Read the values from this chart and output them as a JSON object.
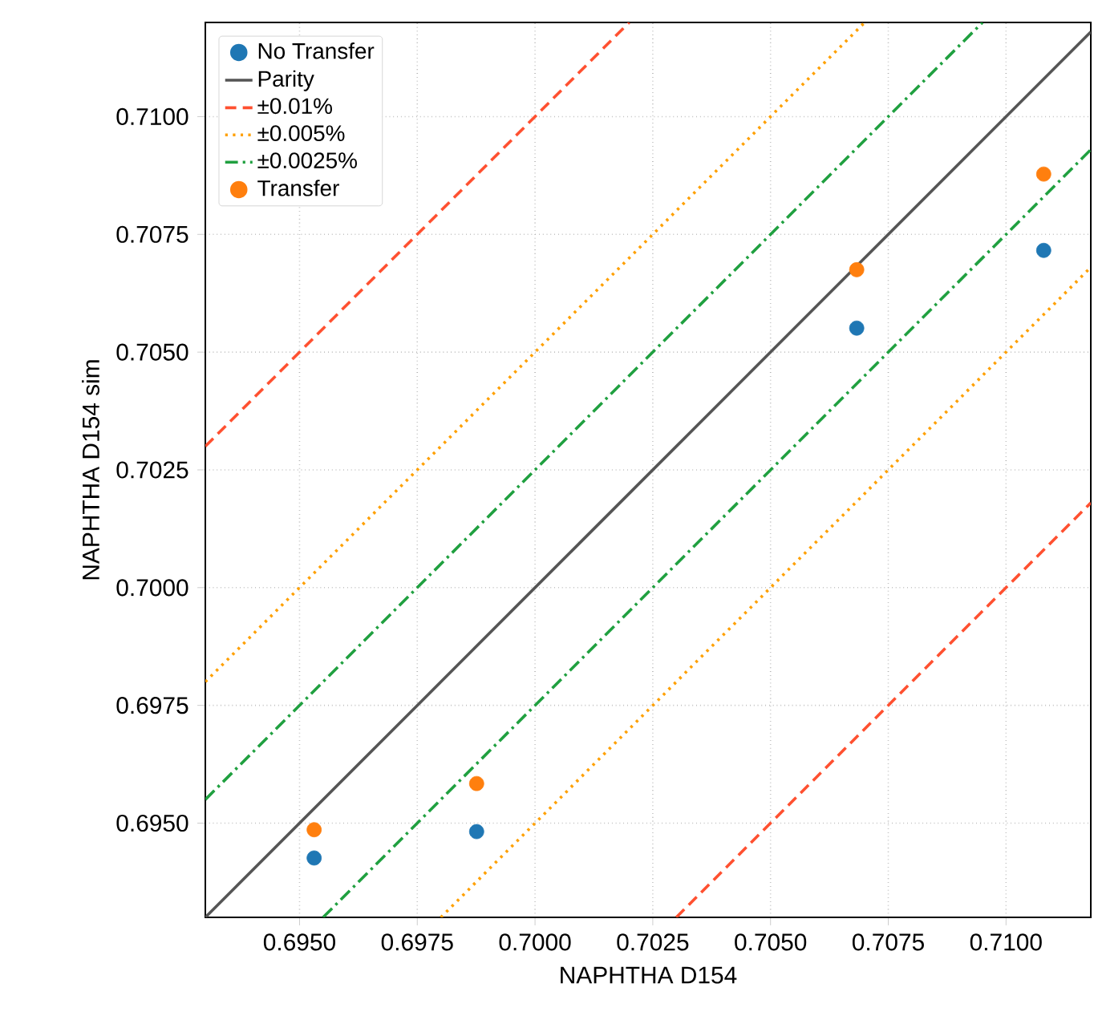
{
  "chart_data": {
    "type": "scatter",
    "xlabel": "NAPHTHA D154",
    "ylabel": "NAPHTHA D154 sim",
    "xlim": [
      0.693,
      0.7118
    ],
    "ylim": [
      0.693,
      0.712
    ],
    "xticks": [
      {
        "value": 0.695,
        "label": "0.6950"
      },
      {
        "value": 0.6975,
        "label": "0.6975"
      },
      {
        "value": 0.7,
        "label": "0.7000"
      },
      {
        "value": 0.7025,
        "label": "0.7025"
      },
      {
        "value": 0.705,
        "label": "0.7050"
      },
      {
        "value": 0.7075,
        "label": "0.7075"
      },
      {
        "value": 0.71,
        "label": "0.7100"
      }
    ],
    "yticks": [
      {
        "value": 0.695,
        "label": "0.6950"
      },
      {
        "value": 0.6975,
        "label": "0.6975"
      },
      {
        "value": 0.7,
        "label": "0.7000"
      },
      {
        "value": 0.7025,
        "label": "0.7025"
      },
      {
        "value": 0.705,
        "label": "0.7050"
      },
      {
        "value": 0.7075,
        "label": "0.7075"
      },
      {
        "value": 0.71,
        "label": "0.7100"
      }
    ],
    "grid": true,
    "legend": "top left",
    "series": [
      {
        "name": "No Transfer",
        "marker": "circle",
        "color": "#1f77b4",
        "x": [
          0.69531,
          0.69876,
          0.70683,
          0.7108
        ],
        "values": [
          0.69426,
          0.69482,
          0.70551,
          0.70716
        ]
      },
      {
        "name": "Parity",
        "type": "line",
        "marker": "none",
        "line_style": "solid",
        "color": "#555555",
        "x": [
          0.693,
          0.7118
        ],
        "values": [
          0.693,
          0.7118
        ]
      },
      {
        "name": "±0.01%",
        "type": "line",
        "marker": "none",
        "line_style": "dashed",
        "color": "#ff5030",
        "x": [
          0.693,
          0.702
        ],
        "values": [
          0.703,
          0.712
        ]
      },
      {
        "name": "±0.005%",
        "type": "line",
        "marker": "none",
        "line_style": "dotted",
        "color": "#ffa000",
        "x": [
          0.693,
          0.707
        ],
        "values": [
          0.698,
          0.712
        ]
      },
      {
        "name": "±0.0025%",
        "type": "line",
        "marker": "none",
        "line_style": "dashdot",
        "color": "#20a040",
        "x": [
          0.693,
          0.7095
        ],
        "values": [
          0.6955,
          0.712
        ]
      },
      {
        "name": "Transfer",
        "marker": "circle",
        "color": "#ff7f0e",
        "x": [
          0.69531,
          0.69876,
          0.70683,
          0.7108
        ],
        "values": [
          0.69486,
          0.69584,
          0.70675,
          0.70878
        ]
      },
      {
        "type": "line",
        "marker": "none",
        "line_style": "dashed",
        "color": "#ff5030",
        "x": [
          0.703,
          0.7118
        ],
        "values": [
          0.693,
          0.7018
        ]
      },
      {
        "type": "line",
        "marker": "none",
        "line_style": "dotted",
        "color": "#ffa000",
        "x": [
          0.698,
          0.7118
        ],
        "values": [
          0.693,
          0.7068
        ]
      },
      {
        "type": "line",
        "marker": "none",
        "line_style": "dashdot",
        "color": "#20a040",
        "x": [
          0.6955,
          0.7118
        ],
        "values": [
          0.693,
          0.7093
        ]
      }
    ]
  }
}
